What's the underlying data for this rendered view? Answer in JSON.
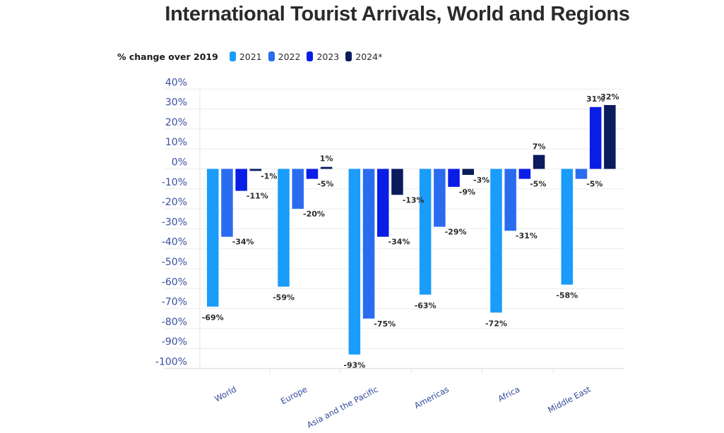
{
  "title": "International Tourist Arrivals, World and Regions",
  "legend": {
    "title": "% change over 2019",
    "items": [
      {
        "label": "2021",
        "color": "#1a9cfb"
      },
      {
        "label": "2022",
        "color": "#2a6cf0"
      },
      {
        "label": "2023",
        "color": "#0a1de6"
      },
      {
        "label": "2024*",
        "color": "#0a1c5c"
      }
    ]
  },
  "chart_data": {
    "type": "bar",
    "title": "International Tourist Arrivals, World and Regions",
    "ylabel": "% change over 2019",
    "xlabel": "",
    "categories": [
      "World",
      "Europe",
      "Asia and the Pacific",
      "Americas",
      "Africa",
      "Middle East"
    ],
    "series": [
      {
        "name": "2021",
        "values": [
          -69,
          -59,
          -93,
          -63,
          -72,
          -58
        ],
        "labels": [
          "-69%",
          "-59%",
          "-93%",
          "-63%",
          "-72%",
          "-58%"
        ]
      },
      {
        "name": "2022",
        "values": [
          -34,
          -20,
          -75,
          -29,
          -31,
          -5
        ],
        "labels": [
          "-34%",
          "-20%",
          "-75%",
          "-29%",
          "-31%",
          "-5%"
        ]
      },
      {
        "name": "2023",
        "values": [
          -11,
          -5,
          -34,
          -9,
          -5,
          31
        ],
        "labels": [
          "-11%",
          "-5%",
          "-34%",
          "-9%",
          "-5%",
          "31%"
        ]
      },
      {
        "name": "2024*",
        "values": [
          -1,
          1,
          -13,
          -3,
          7,
          32
        ],
        "labels": [
          "-1%",
          "1%",
          "-13%",
          "-3%",
          "7%",
          "32%"
        ]
      }
    ],
    "ylim": [
      -100,
      40
    ],
    "yticks": [
      40,
      30,
      20,
      10,
      0,
      -10,
      -20,
      -30,
      -40,
      -50,
      -60,
      -70,
      -80,
      -90,
      -100
    ],
    "ytick_labels": [
      "40%",
      "30%",
      "20%",
      "10%",
      "0%",
      "-10%",
      "-20%",
      "-30%",
      "-40%",
      "-50%",
      "-60%",
      "-70%",
      "-80%",
      "-90%",
      "-100%"
    ],
    "grid": true,
    "legend_position": "top-left"
  }
}
